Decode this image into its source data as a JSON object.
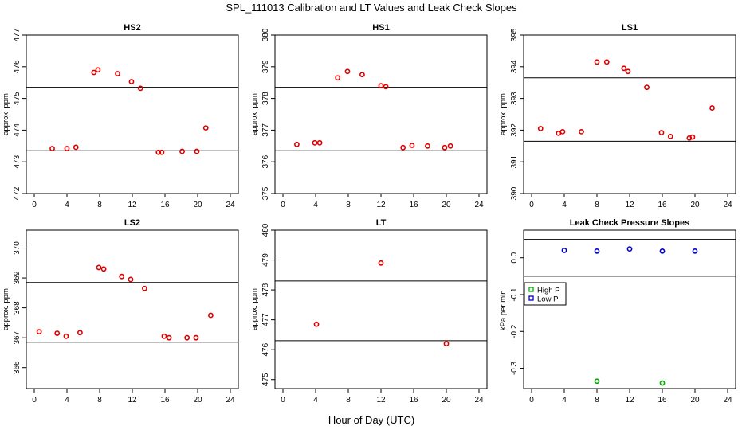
{
  "figure": {
    "title": "SPL_111013  Calibration and LT Values and Leak Check Slopes",
    "xlabel": "Hour of Day (UTC)"
  },
  "chart_data": [
    {
      "type": "scatter",
      "title": "HS2",
      "ylabel": "approx. ppm",
      "xlim": [
        0,
        24
      ],
      "xticks": [
        0,
        4,
        8,
        12,
        16,
        20,
        24
      ],
      "ylim": [
        472,
        477
      ],
      "yticks": [
        472,
        473,
        474,
        475,
        476,
        477
      ],
      "hlines": [
        475.35,
        473.35
      ],
      "series": [
        {
          "name": "values",
          "color": "#dd0000",
          "x": [
            2.2,
            4.0,
            5.1,
            7.3,
            7.8,
            10.2,
            11.9,
            13.0,
            15.2,
            15.6,
            18.1,
            19.9,
            21.0
          ],
          "y": [
            473.42,
            473.42,
            473.46,
            475.82,
            475.9,
            475.78,
            475.53,
            475.32,
            473.3,
            473.3,
            473.33,
            473.33,
            474.07
          ]
        }
      ]
    },
    {
      "type": "scatter",
      "title": "HS1",
      "ylabel": "approx. ppm",
      "xlim": [
        0,
        24
      ],
      "xticks": [
        0,
        4,
        8,
        12,
        16,
        20,
        24
      ],
      "ylim": [
        375,
        380
      ],
      "yticks": [
        375,
        376,
        377,
        378,
        379,
        380
      ],
      "hlines": [
        378.35,
        376.35
      ],
      "series": [
        {
          "name": "values",
          "color": "#dd0000",
          "x": [
            1.7,
            3.9,
            4.5,
            6.7,
            7.9,
            9.7,
            12.0,
            12.6,
            14.7,
            15.8,
            17.7,
            19.8,
            20.5
          ],
          "y": [
            376.55,
            376.6,
            376.6,
            378.65,
            378.85,
            378.75,
            378.4,
            378.37,
            376.45,
            376.52,
            376.5,
            376.45,
            376.5
          ]
        }
      ]
    },
    {
      "type": "scatter",
      "title": "LS1",
      "ylabel": "approx. ppm",
      "xlim": [
        0,
        24
      ],
      "xticks": [
        0,
        4,
        8,
        12,
        16,
        20,
        24
      ],
      "ylim": [
        390,
        395
      ],
      "yticks": [
        390,
        391,
        392,
        393,
        394,
        395
      ],
      "hlines": [
        393.65,
        391.65
      ],
      "series": [
        {
          "name": "values",
          "color": "#dd0000",
          "x": [
            1.1,
            3.3,
            3.8,
            6.1,
            8.0,
            9.2,
            11.3,
            11.8,
            14.1,
            15.9,
            17.0,
            19.3,
            19.7,
            22.1
          ],
          "y": [
            392.05,
            391.9,
            391.95,
            391.95,
            394.15,
            394.15,
            393.95,
            393.85,
            393.35,
            391.92,
            391.8,
            391.75,
            391.78,
            392.7
          ]
        }
      ]
    },
    {
      "type": "scatter",
      "title": "LS2",
      "ylabel": "approx. ppm",
      "xlim": [
        0,
        24
      ],
      "xticks": [
        0,
        4,
        8,
        12,
        16,
        20,
        24
      ],
      "ylim": [
        365.3,
        370.6
      ],
      "yticks": [
        366,
        367,
        368,
        369,
        370
      ],
      "hlines": [
        368.85,
        366.85
      ],
      "series": [
        {
          "name": "values",
          "color": "#dd0000",
          "x": [
            0.6,
            2.8,
            3.9,
            5.6,
            7.9,
            8.5,
            10.7,
            11.8,
            13.5,
            15.9,
            16.5,
            18.7,
            19.8,
            21.6
          ],
          "y": [
            367.2,
            367.15,
            367.05,
            367.17,
            369.35,
            369.3,
            369.05,
            368.95,
            368.65,
            367.05,
            367.0,
            367.0,
            367.0,
            367.75
          ]
        }
      ]
    },
    {
      "type": "scatter",
      "title": "LT",
      "ylabel": "approx. ppm",
      "xlim": [
        0,
        24
      ],
      "xticks": [
        0,
        4,
        8,
        12,
        16,
        20,
        24
      ],
      "ylim": [
        474.7,
        480
      ],
      "yticks": [
        475,
        476,
        477,
        478,
        479,
        480
      ],
      "hlines": [
        478.3,
        476.3
      ],
      "series": [
        {
          "name": "values",
          "color": "#dd0000",
          "x": [
            4.1,
            12.0,
            20.0
          ],
          "y": [
            476.85,
            478.9,
            476.2
          ]
        }
      ]
    },
    {
      "type": "scatter",
      "title": "Leak Check Pressure Slopes",
      "ylabel": "kPa per min.",
      "xlim": [
        0,
        24
      ],
      "xticks": [
        0,
        4,
        8,
        12,
        16,
        20,
        24
      ],
      "ylim": [
        -0.355,
        0.075
      ],
      "yticks": [
        -0.3,
        -0.2,
        -0.1,
        0.0
      ],
      "hlines": [
        0.05,
        -0.05
      ],
      "legend": {
        "position": "top-left"
      },
      "series": [
        {
          "name": "High P",
          "color": "#00aa00",
          "x": [
            8,
            16
          ],
          "y": [
            -0.335,
            -0.34
          ]
        },
        {
          "name": "Low P",
          "color": "#0000cc",
          "x": [
            4,
            8,
            12,
            16,
            20
          ],
          "y": [
            0.02,
            0.018,
            0.024,
            0.018,
            0.018
          ]
        }
      ]
    }
  ]
}
